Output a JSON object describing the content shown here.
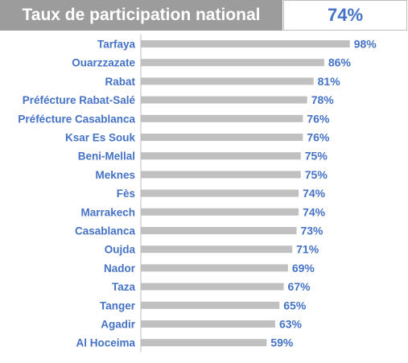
{
  "header": {
    "title": "Taux de participation national",
    "value": "74%"
  },
  "colors": {
    "bar": "#c0c0c0",
    "axis": "#bdbdbd",
    "label": "#4472c4",
    "header_bg": "#9c9c9c"
  },
  "chart_data": {
    "type": "bar",
    "orientation": "horizontal",
    "title": "",
    "xlabel": "",
    "ylabel": "",
    "xlim": [
      0,
      100
    ],
    "grid": false,
    "categories": [
      "Tarfaya",
      "Ouarzzazate",
      "Rabat",
      "Préfécture Rabat-Salé",
      "Préfécture Casablanca",
      "Ksar Es Souk",
      "Beni-Mellal",
      "Meknes",
      "Fès",
      "Marrakech",
      "Casablanca",
      "Oujda",
      "Nador",
      "Taza",
      "Tanger",
      "Agadir",
      "Al Hoceima"
    ],
    "values": [
      98,
      86,
      81,
      78,
      76,
      76,
      75,
      75,
      74,
      74,
      73,
      71,
      69,
      67,
      65,
      63,
      59
    ],
    "value_labels": [
      "98%",
      "86%",
      "81%",
      "78%",
      "76%",
      "76%",
      "75%",
      "75%",
      "74%",
      "74%",
      "73%",
      "71%",
      "69%",
      "67%",
      "65%",
      "63%",
      "59%"
    ]
  }
}
